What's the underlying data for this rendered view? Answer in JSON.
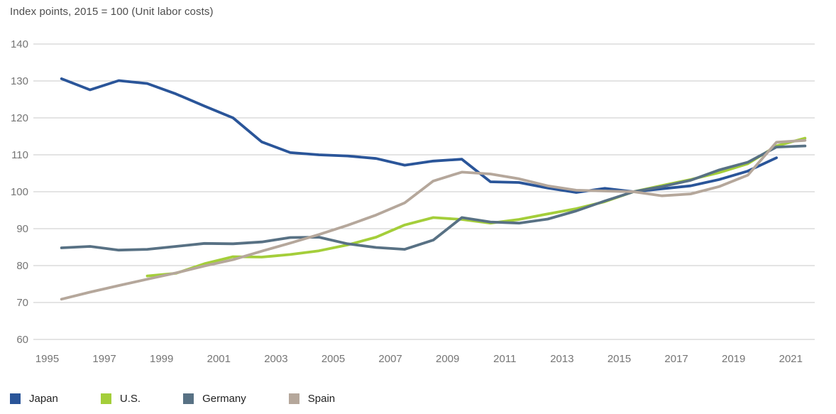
{
  "header": {
    "title": "Index points, 2015 = 100 (Unit labor costs)"
  },
  "chart_data": {
    "type": "line",
    "title": "Index points, 2015 = 100 (Unit labor costs)",
    "ylabel": "Index points, 2015 = 100",
    "xlabel": "",
    "ylim": [
      60,
      140
    ],
    "ytick_step": 10,
    "yticks": [
      60,
      70,
      80,
      90,
      100,
      110,
      120,
      130,
      140
    ],
    "xticks": [
      1995,
      1997,
      1999,
      2001,
      2003,
      2005,
      2007,
      2009,
      2011,
      2013,
      2015,
      2017,
      2019,
      2021
    ],
    "grid": "horizontal",
    "legend_position": "bottom",
    "gridline_color": "#c9c9c9",
    "axis_text_color": "#757575",
    "series": [
      {
        "name": "Japan",
        "color": "#2a5599",
        "start_year": 1995,
        "end_year": 2020,
        "values": [
          130.6,
          127.6,
          130.1,
          129.3,
          126.5,
          123.2,
          120.0,
          113.5,
          110.6,
          110.0,
          109.7,
          109.0,
          107.2,
          108.3,
          108.8,
          102.7,
          102.5,
          101.0,
          99.8,
          100.9,
          100.0,
          100.8,
          101.6,
          103.3,
          105.6,
          109.2
        ]
      },
      {
        "name": "U.S.",
        "color": "#a4ce3a",
        "start_year": 1998,
        "end_year": 2021,
        "values": [
          77.2,
          77.9,
          80.5,
          82.4,
          82.3,
          83.0,
          84.0,
          85.6,
          87.7,
          91.0,
          93.0,
          92.5,
          91.5,
          92.5,
          94.0,
          95.4,
          97.3,
          100.0,
          101.7,
          103.3,
          105.2,
          107.6,
          112.4,
          114.5
        ]
      },
      {
        "name": "Germany",
        "color": "#587184",
        "start_year": 1995,
        "end_year": 2021,
        "values": [
          84.8,
          85.2,
          84.2,
          84.4,
          85.2,
          86.0,
          85.9,
          86.4,
          87.6,
          87.7,
          85.9,
          84.9,
          84.4,
          86.9,
          93.0,
          91.8,
          91.5,
          92.6,
          94.8,
          97.5,
          100.0,
          101.4,
          103.1,
          105.9,
          108.0,
          112.1,
          112.4
        ]
      },
      {
        "name": "Spain",
        "color": "#b5a79b",
        "start_year": 1995,
        "end_year": 2021,
        "values": [
          70.9,
          72.8,
          74.6,
          76.3,
          78.0,
          79.9,
          81.6,
          83.9,
          86.1,
          88.4,
          90.9,
          93.7,
          97.0,
          102.9,
          105.3,
          104.8,
          103.5,
          101.6,
          100.4,
          100.2,
          100.0,
          98.9,
          99.4,
          101.4,
          104.5,
          113.4,
          113.9
        ]
      }
    ]
  }
}
